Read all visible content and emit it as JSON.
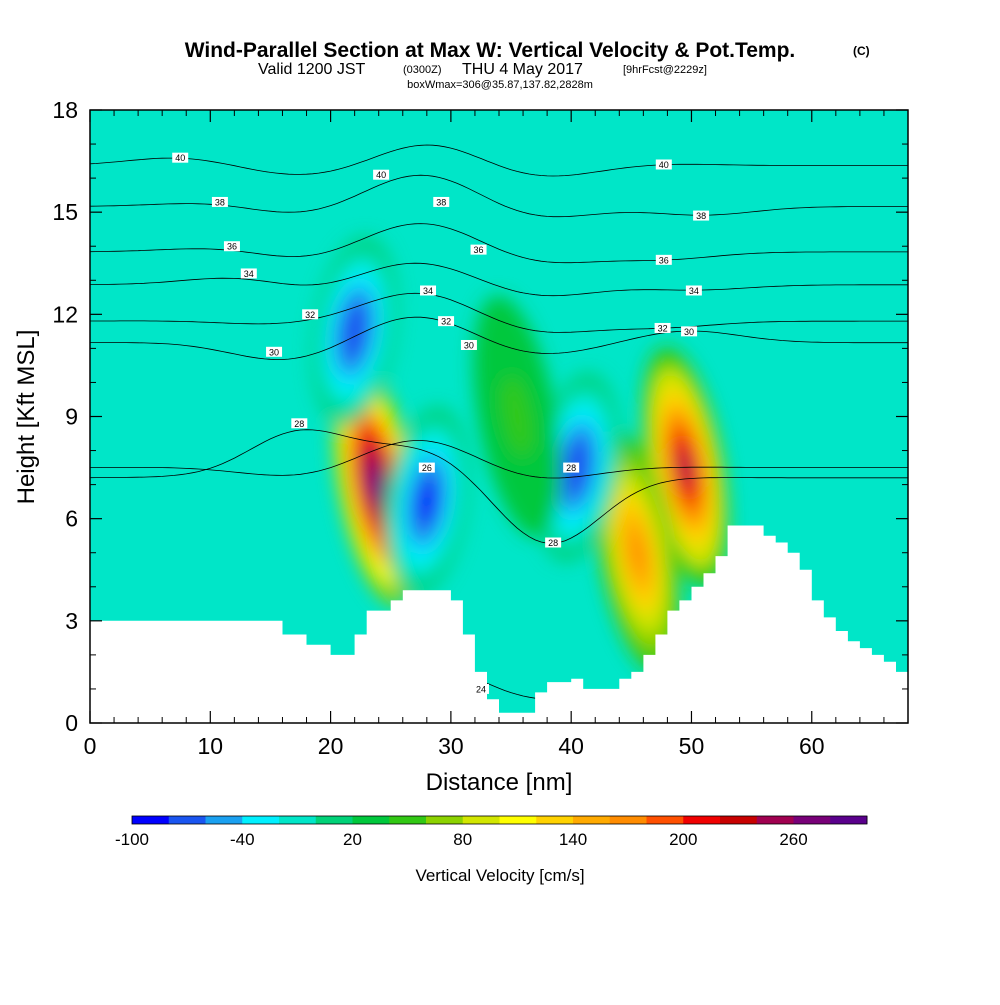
{
  "header": {
    "title": "Wind-Parallel Section at Max W: Vertical Velocity & Pot.Temp.",
    "copyright": "(C)",
    "valid_prefix": "Valid 1200 JST",
    "valid_utc": "(0300Z)",
    "valid_date": "THU 4 May 2017",
    "forecast_note": "[9hrFcst@2229z]",
    "box_info": "boxWmax=306@35.87,137.82,2828m"
  },
  "colors": {
    "bands": [
      "#0000ff",
      "#1a55f0",
      "#1aa0f0",
      "#00f0ff",
      "#00e6c8",
      "#00d278",
      "#00c83c",
      "#32c814",
      "#8cd200",
      "#d2e600",
      "#ffff00",
      "#ffd200",
      "#ffaa00",
      "#ff8c00",
      "#ff5000",
      "#f00000",
      "#c80000",
      "#a00050",
      "#780078",
      "#5a008c"
    ],
    "terrain": "#ffffff",
    "contour": "#000000"
  },
  "chart_data": {
    "type": "heatmap",
    "xlabel": "Distance [nm]",
    "ylabel": "Height [Kft MSL]",
    "xlim": [
      0,
      68
    ],
    "ylim": [
      0,
      18
    ],
    "x_ticks": [
      "0",
      "10",
      "20",
      "30",
      "40",
      "50",
      "60"
    ],
    "x_tick_values": [
      0,
      10,
      20,
      30,
      40,
      50,
      60
    ],
    "y_ticks": [
      "0",
      "3",
      "6",
      "9",
      "12",
      "15",
      "18"
    ],
    "y_tick_values": [
      0,
      3,
      6,
      9,
      12,
      15,
      18
    ],
    "colorbar": {
      "label": "Vertical Velocity [cm/s]",
      "min": -100,
      "max": 300,
      "step": 20,
      "tick_labels": [
        "-100",
        "-40",
        "20",
        "80",
        "140",
        "200",
        "260"
      ],
      "tick_values": [
        -100,
        -40,
        20,
        80,
        140,
        200,
        260
      ]
    },
    "terrain_profile": {
      "x": [
        0,
        15,
        16,
        18,
        20,
        21,
        22,
        23,
        25,
        26,
        28,
        30,
        31,
        32,
        33,
        34,
        36,
        37,
        38,
        40,
        41,
        42,
        44,
        45,
        46,
        47,
        48,
        49,
        50,
        51,
        52,
        53,
        54,
        55,
        56,
        57,
        58,
        59,
        60,
        61,
        62,
        63,
        64,
        65,
        66,
        67,
        68
      ],
      "height": [
        3,
        3,
        2.6,
        2.3,
        2,
        2,
        2.6,
        3.3,
        3.6,
        3.9,
        3.9,
        3.6,
        2.6,
        1.5,
        0.7,
        0.3,
        0.3,
        0.9,
        1.2,
        1.3,
        1,
        1,
        1.3,
        1.5,
        2,
        2.6,
        3.3,
        3.6,
        4,
        4.4,
        4.9,
        5.8,
        5.8,
        5.8,
        5.5,
        5.3,
        5,
        4.5,
        3.6,
        3.1,
        2.7,
        2.4,
        2.2,
        2,
        1.8,
        1.5,
        1
      ]
    },
    "vertical_velocity_features": [
      {
        "x": 23.8,
        "z": 7.0,
        "value": 300,
        "label": "updraft core"
      },
      {
        "x": 49.5,
        "z": 7.5,
        "value": 240,
        "label": "updraft core"
      },
      {
        "x": 45.5,
        "z": 5.0,
        "value": 170,
        "label": "updraft core"
      },
      {
        "x": 28.0,
        "z": 6.5,
        "value": -100,
        "label": "downdraft core"
      },
      {
        "x": 40.5,
        "z": 7.5,
        "value": -80,
        "label": "downdraft core"
      },
      {
        "x": 22.0,
        "z": 11.5,
        "value": -80,
        "label": "downdraft core"
      },
      {
        "x": 35.5,
        "z": 9.0,
        "value": 45,
        "label": "weak ascent"
      }
    ],
    "theta_contour_labels": [
      {
        "text": "40",
        "x": 7.5,
        "z": 16.6
      },
      {
        "text": "40",
        "x": 24.2,
        "z": 16.1
      },
      {
        "text": "40",
        "x": 47.7,
        "z": 16.4
      },
      {
        "text": "38",
        "x": 10.8,
        "z": 15.3
      },
      {
        "text": "38",
        "x": 29.2,
        "z": 15.3
      },
      {
        "text": "38",
        "x": 50.8,
        "z": 14.9
      },
      {
        "text": "36",
        "x": 11.8,
        "z": 14.0
      },
      {
        "text": "36",
        "x": 32.3,
        "z": 13.9
      },
      {
        "text": "36",
        "x": 47.7,
        "z": 13.6
      },
      {
        "text": "34",
        "x": 13.2,
        "z": 13.2
      },
      {
        "text": "34",
        "x": 28.1,
        "z": 12.7
      },
      {
        "text": "34",
        "x": 50.2,
        "z": 12.7
      },
      {
        "text": "32",
        "x": 18.3,
        "z": 12.0
      },
      {
        "text": "32",
        "x": 29.6,
        "z": 11.8
      },
      {
        "text": "32",
        "x": 47.6,
        "z": 11.6
      },
      {
        "text": "30",
        "x": 15.3,
        "z": 10.9
      },
      {
        "text": "30",
        "x": 31.5,
        "z": 11.1
      },
      {
        "text": "30",
        "x": 49.8,
        "z": 11.5
      },
      {
        "text": "28",
        "x": 17.4,
        "z": 8.8
      },
      {
        "text": "28",
        "x": 40.0,
        "z": 7.5
      },
      {
        "text": "28",
        "x": 38.5,
        "z": 5.3
      },
      {
        "text": "26",
        "x": 28.0,
        "z": 7.5
      },
      {
        "text": "24",
        "x": 32.5,
        "z": 1.0
      }
    ]
  }
}
